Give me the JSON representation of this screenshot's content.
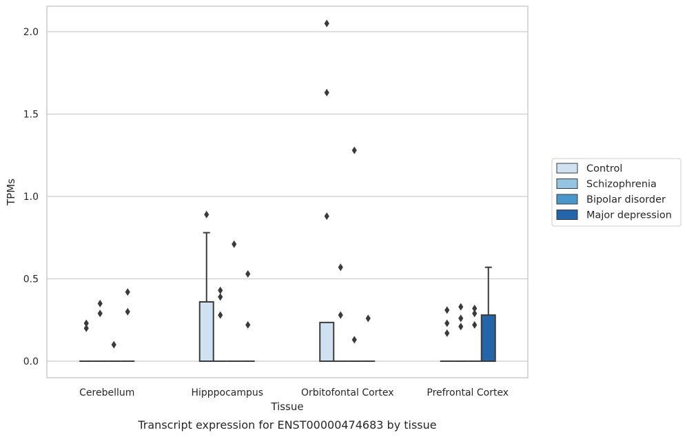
{
  "caption": "Transcript expression for ENST00000474683 by tissue",
  "chart_data": {
    "type": "box",
    "title": "",
    "xlabel": "Tissue",
    "ylabel": "TPMs",
    "ylim": [
      -0.1,
      2.15
    ],
    "yticks": [
      0.0,
      0.5,
      1.0,
      1.5,
      2.0
    ],
    "ytick_labels": [
      "0.0",
      "0.5",
      "1.0",
      "1.5",
      "2.0"
    ],
    "grid": "horizontal",
    "legend_position": "right",
    "categories": [
      "Cerebellum",
      "Hipppocampus",
      "Orbitofontal Cortex",
      "Prefrontal Cortex"
    ],
    "series": [
      {
        "name": "Control",
        "color": "#d0e1f2",
        "boxes": [
          {
            "q1": 0,
            "median": 0,
            "q3": 0,
            "whisker_low": 0,
            "whisker_high": 0,
            "outliers": [
              0.2,
              0.23
            ]
          },
          {
            "q1": 0,
            "median": 0,
            "q3": 0.36,
            "whisker_low": 0,
            "whisker_high": 0.78,
            "outliers": [
              0.89
            ]
          },
          {
            "q1": 0,
            "median": 0,
            "q3": 0.235,
            "whisker_low": 0,
            "whisker_high": 0.235,
            "outliers": [
              0.88,
              1.63,
              2.05
            ]
          },
          {
            "q1": 0,
            "median": 0,
            "q3": 0,
            "whisker_low": 0,
            "whisker_high": 0,
            "outliers": [
              0.17,
              0.23,
              0.31
            ]
          }
        ]
      },
      {
        "name": "Schizophrenia",
        "color": "#94c4df",
        "boxes": [
          {
            "q1": 0,
            "median": 0,
            "q3": 0,
            "whisker_low": 0,
            "whisker_high": 0,
            "outliers": [
              0.29,
              0.35
            ]
          },
          {
            "q1": 0,
            "median": 0,
            "q3": 0,
            "whisker_low": 0,
            "whisker_high": 0,
            "outliers": [
              0.28,
              0.39,
              0.43
            ]
          },
          {
            "q1": 0,
            "median": 0,
            "q3": 0,
            "whisker_low": 0,
            "whisker_high": 0,
            "outliers": [
              0.28,
              0.57
            ]
          },
          {
            "q1": 0,
            "median": 0,
            "q3": 0,
            "whisker_low": 0,
            "whisker_high": 0,
            "outliers": [
              0.21,
              0.26,
              0.33
            ]
          }
        ]
      },
      {
        "name": "Bipolar disorder",
        "color": "#4a98c9",
        "boxes": [
          {
            "q1": 0,
            "median": 0,
            "q3": 0,
            "whisker_low": 0,
            "whisker_high": 0,
            "outliers": [
              0.1
            ]
          },
          {
            "q1": 0,
            "median": 0,
            "q3": 0,
            "whisker_low": 0,
            "whisker_high": 0,
            "outliers": [
              0.71
            ]
          },
          {
            "q1": 0,
            "median": 0,
            "q3": 0,
            "whisker_low": 0,
            "whisker_high": 0,
            "outliers": [
              0.13,
              1.28
            ]
          },
          {
            "q1": 0,
            "median": 0,
            "q3": 0,
            "whisker_low": 0,
            "whisker_high": 0,
            "outliers": [
              0.22,
              0.29,
              0.32
            ]
          }
        ]
      },
      {
        "name": "Major depression",
        "color": "#2464a8",
        "boxes": [
          {
            "q1": 0,
            "median": 0,
            "q3": 0,
            "whisker_low": 0,
            "whisker_high": 0,
            "outliers": [
              0.3,
              0.42
            ]
          },
          {
            "q1": 0,
            "median": 0,
            "q3": 0,
            "whisker_low": 0,
            "whisker_high": 0,
            "outliers": [
              0.22,
              0.53
            ]
          },
          {
            "q1": 0,
            "median": 0,
            "q3": 0,
            "whisker_low": 0,
            "whisker_high": 0,
            "outliers": [
              0.26
            ]
          },
          {
            "q1": 0,
            "median": 0,
            "q3": 0.28,
            "whisker_low": 0,
            "whisker_high": 0.57,
            "outliers": []
          }
        ]
      }
    ]
  }
}
